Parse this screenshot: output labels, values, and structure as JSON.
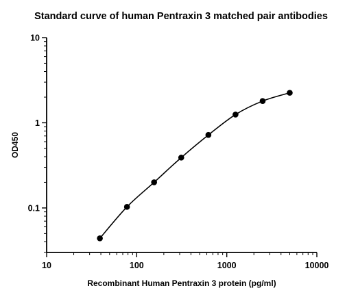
{
  "chart_data": {
    "type": "scatter",
    "title": "Standard curve of human Pentraxin 3 matched pair antibodies",
    "xlabel": "Recombinant Human Pentraxin 3 protein (pg/ml)",
    "ylabel": "OD450",
    "x_scale": "log",
    "y_scale": "log",
    "xlim": [
      10,
      10000
    ],
    "ylim": [
      0.03,
      10
    ],
    "x_ticks": [
      10,
      100,
      1000,
      10000
    ],
    "x_tick_labels": [
      "10",
      "100",
      "1000",
      "10000"
    ],
    "y_ticks": [
      0.1,
      1,
      10
    ],
    "y_tick_labels": [
      "0.1",
      "1",
      "10"
    ],
    "grid": false,
    "legend": "none",
    "series": [
      {
        "x": [
          39,
          78,
          156,
          312,
          625,
          1250,
          2500,
          5000
        ],
        "y": [
          0.044,
          0.103,
          0.2,
          0.39,
          0.72,
          1.25,
          1.8,
          2.25
        ],
        "fit_curve": true
      }
    ]
  }
}
